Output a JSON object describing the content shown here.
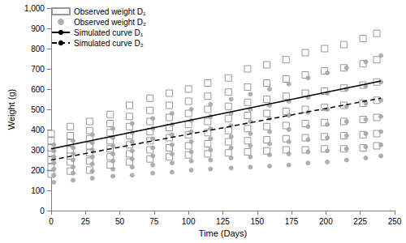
{
  "chart_data": {
    "type": "scatter",
    "x_label": "Time (Days)",
    "y_label": "Weight (g)",
    "xlim": [
      0,
      250
    ],
    "xticks": [
      0,
      25,
      50,
      75,
      100,
      125,
      150,
      175,
      200,
      225,
      250
    ],
    "ylim": [
      0,
      1000
    ],
    "yticks": [
      0,
      100,
      200,
      300,
      400,
      500,
      600,
      700,
      800,
      900,
      1000
    ],
    "grid": false,
    "legend": "top-left",
    "series": [
      {
        "name": "Observed weight D₁",
        "type": "scatter",
        "marker": "open_square",
        "color": "#7f7f7f",
        "x": [
          0,
          0,
          0,
          0,
          0,
          0,
          0,
          14,
          14,
          14,
          14,
          14,
          14,
          14,
          28,
          28,
          28,
          28,
          28,
          28,
          28,
          43,
          43,
          43,
          43,
          43,
          43,
          43,
          57,
          57,
          57,
          57,
          57,
          57,
          57,
          72,
          72,
          72,
          72,
          72,
          72,
          72,
          86,
          86,
          86,
          86,
          86,
          86,
          86,
          100,
          100,
          100,
          100,
          100,
          100,
          100,
          114,
          114,
          114,
          114,
          114,
          114,
          114,
          129,
          129,
          129,
          129,
          129,
          129,
          129,
          143,
          143,
          143,
          143,
          143,
          143,
          143,
          157,
          157,
          157,
          157,
          157,
          157,
          157,
          171,
          171,
          171,
          171,
          171,
          171,
          171,
          185,
          185,
          185,
          185,
          185,
          185,
          185,
          199,
          199,
          199,
          199,
          199,
          199,
          199,
          213,
          213,
          213,
          213,
          213,
          213,
          213,
          227,
          227,
          227,
          227,
          227,
          227,
          227,
          237,
          237,
          237,
          237,
          237,
          237,
          237
        ],
        "values": [
          180,
          215,
          250,
          285,
          310,
          345,
          380,
          195,
          240,
          270,
          300,
          335,
          370,
          415,
          200,
          245,
          285,
          320,
          355,
          395,
          440,
          225,
          265,
          305,
          345,
          385,
          430,
          475,
          240,
          280,
          325,
          370,
          415,
          465,
          520,
          255,
          300,
          345,
          390,
          440,
          495,
          555,
          265,
          310,
          360,
          410,
          460,
          520,
          580,
          275,
          320,
          375,
          425,
          480,
          540,
          600,
          280,
          330,
          385,
          440,
          500,
          565,
          630,
          285,
          340,
          395,
          455,
          515,
          585,
          655,
          290,
          345,
          405,
          470,
          535,
          610,
          700,
          295,
          350,
          415,
          480,
          550,
          630,
          720,
          300,
          355,
          420,
          490,
          565,
          650,
          745,
          300,
          360,
          430,
          500,
          580,
          670,
          780,
          305,
          365,
          435,
          510,
          590,
          690,
          800,
          305,
          370,
          440,
          520,
          605,
          705,
          820,
          310,
          375,
          450,
          530,
          620,
          725,
          850,
          320,
          380,
          460,
          545,
          635,
          745,
          875
        ]
      },
      {
        "name": "Observed weight D₂",
        "type": "scatter",
        "marker": "circle",
        "color": "#a6a6a6",
        "x": [
          2,
          2,
          2,
          2,
          2,
          2,
          2,
          16,
          16,
          16,
          16,
          16,
          16,
          16,
          30,
          30,
          30,
          30,
          30,
          30,
          30,
          45,
          45,
          45,
          45,
          45,
          45,
          45,
          59,
          59,
          59,
          59,
          59,
          59,
          59,
          74,
          74,
          74,
          74,
          74,
          74,
          74,
          88,
          88,
          88,
          88,
          88,
          88,
          88,
          102,
          102,
          102,
          102,
          102,
          102,
          102,
          116,
          116,
          116,
          116,
          116,
          116,
          116,
          131,
          131,
          131,
          131,
          131,
          131,
          131,
          145,
          145,
          145,
          145,
          145,
          145,
          145,
          159,
          159,
          159,
          159,
          159,
          159,
          159,
          173,
          173,
          173,
          173,
          173,
          173,
          173,
          187,
          187,
          187,
          187,
          187,
          187,
          187,
          201,
          201,
          201,
          201,
          201,
          201,
          201,
          215,
          215,
          215,
          215,
          215,
          215,
          215,
          229,
          229,
          229,
          229,
          229,
          229,
          229,
          240,
          240,
          240,
          240,
          240,
          240,
          240
        ],
        "values": [
          140,
          175,
          205,
          235,
          265,
          295,
          325,
          150,
          185,
          215,
          250,
          280,
          310,
          345,
          160,
          195,
          230,
          265,
          300,
          335,
          375,
          170,
          205,
          245,
          280,
          320,
          360,
          405,
          175,
          215,
          255,
          295,
          340,
          385,
          430,
          185,
          225,
          270,
          310,
          355,
          405,
          455,
          190,
          235,
          280,
          325,
          375,
          425,
          480,
          200,
          245,
          290,
          340,
          390,
          445,
          500,
          205,
          250,
          300,
          355,
          405,
          465,
          525,
          210,
          260,
          310,
          365,
          420,
          480,
          550,
          215,
          265,
          320,
          380,
          440,
          500,
          575,
          220,
          275,
          330,
          390,
          455,
          520,
          600,
          225,
          280,
          340,
          400,
          470,
          540,
          625,
          235,
          290,
          350,
          415,
          485,
          560,
          655,
          240,
          295,
          360,
          425,
          500,
          580,
          680,
          250,
          305,
          370,
          440,
          515,
          600,
          705,
          260,
          315,
          380,
          450,
          530,
          615,
          735,
          270,
          325,
          390,
          465,
          545,
          635,
          765
        ]
      },
      {
        "name": "Simulated curve D₁",
        "type": "line",
        "marker": "none",
        "line_style": "solid",
        "color": "#000000",
        "x": [
          0,
          240
        ],
        "values": [
          305,
          640
        ]
      },
      {
        "name": "Simulated curve D₂",
        "type": "line",
        "marker": "none",
        "line_style": "dashed",
        "color": "#000000",
        "x": [
          0,
          240
        ],
        "values": [
          250,
          555
        ]
      }
    ]
  }
}
